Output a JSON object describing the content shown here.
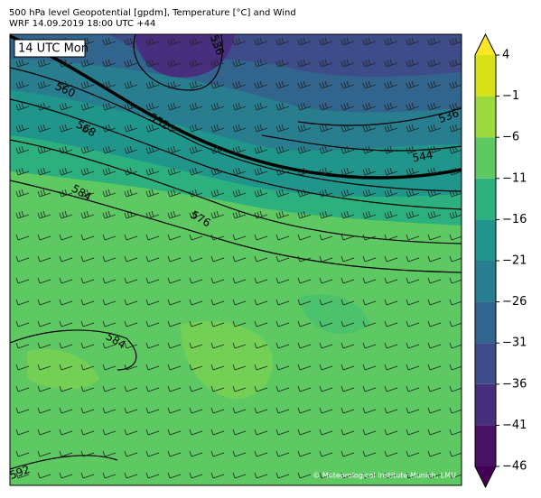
{
  "header": {
    "title_line_1": "500 hPa level Geopotential [gpdm], Temperature [°C] and Wind",
    "title_line_2": "WRF 14.09.2019 18:00 UTC +44"
  },
  "map": {
    "time_label": "14 UTC Mon",
    "contour_labels": [
      536,
      560,
      552,
      568,
      544,
      536,
      584,
      576,
      584,
      592
    ],
    "credit": "© Meteorological Institute Munich, LMU"
  },
  "colorbar": {
    "range": [
      -46,
      4
    ],
    "ticks": [
      4,
      {
        "value": -1,
        "label": "−1"
      },
      {
        "value": -6,
        "label": "−6"
      },
      {
        "value": -11,
        "label": "−11"
      },
      {
        "value": -16,
        "label": "−16"
      },
      {
        "value": -21,
        "label": "−21"
      },
      {
        "value": -26,
        "label": "−26"
      },
      {
        "value": -31,
        "label": "−31"
      },
      {
        "value": -36,
        "label": "−36"
      },
      {
        "value": -41,
        "label": "−41"
      },
      {
        "value": -46,
        "label": "−46"
      }
    ],
    "colors": [
      "#471164",
      "#472f7d",
      "#3e4c8a",
      "#32658e",
      "#287d8e",
      "#1f958b",
      "#2cb17e",
      "#5ec962",
      "#9bd93c",
      "#d8e219"
    ],
    "extend_colors": [
      "#440154",
      "#fde725"
    ]
  }
}
